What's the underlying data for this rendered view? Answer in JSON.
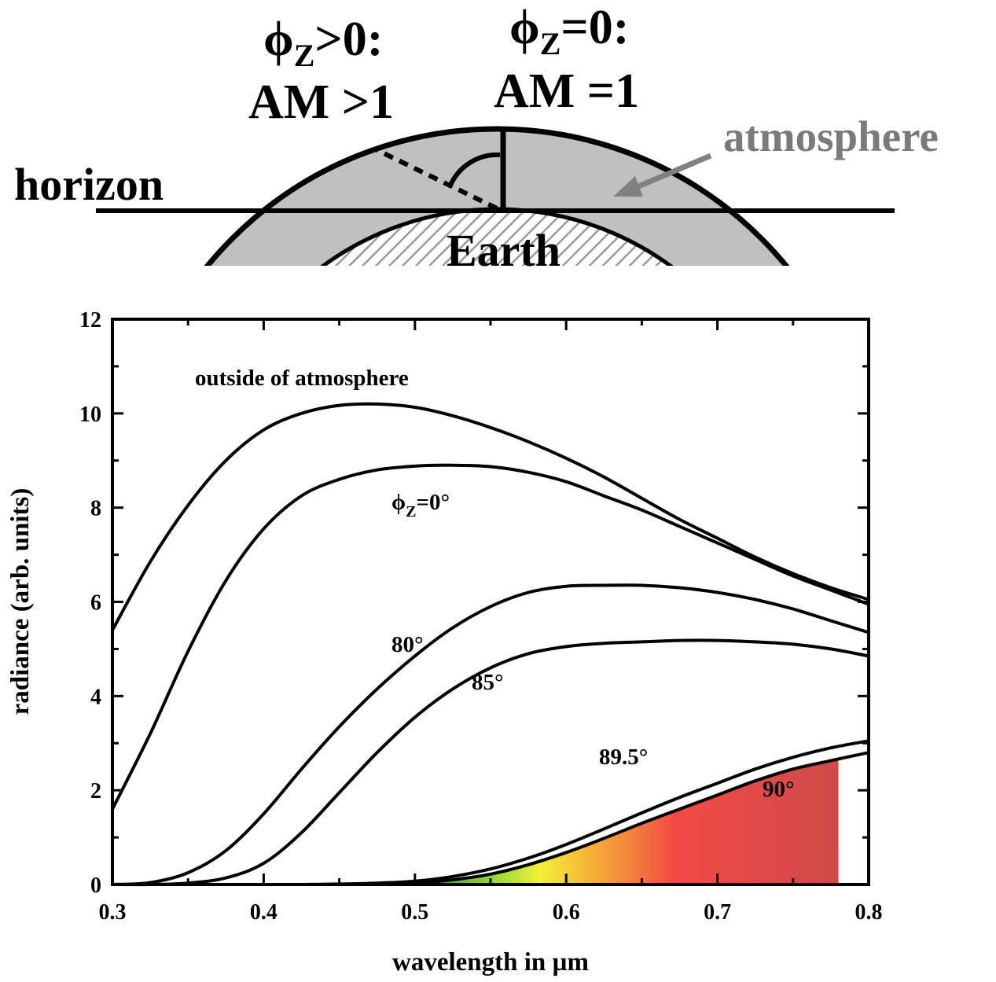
{
  "diagram": {
    "label_left_line1": "ϕ",
    "label_left_sub": "Z",
    "label_left_rest": ">0:",
    "label_left_line2": "AM >1",
    "label_right_line1": "ϕ",
    "label_right_sub": "Z",
    "label_right_rest": "=0:",
    "label_right_line2": "AM =1",
    "horizon": "horizon",
    "atmosphere": "atmosphere",
    "earth": "Earth"
  },
  "chart_data": {
    "type": "line",
    "xlabel": "wavelength in µm",
    "ylabel": "radiance (arb. units)",
    "xlim": [
      0.3,
      0.8
    ],
    "ylim": [
      0,
      12
    ],
    "xticks": [
      0.3,
      0.4,
      0.5,
      0.6,
      0.7,
      0.8
    ],
    "xtick_labels": [
      "0.3",
      "0.4",
      "0.5",
      "0.6",
      "0.7",
      "0.8"
    ],
    "yticks": [
      0,
      2,
      4,
      6,
      8,
      10,
      12
    ],
    "ytick_labels": [
      "0",
      "2",
      "4",
      "6",
      "8",
      "10",
      "12"
    ],
    "x": [
      0.3,
      0.325,
      0.35,
      0.375,
      0.4,
      0.425,
      0.45,
      0.475,
      0.5,
      0.525,
      0.55,
      0.575,
      0.6,
      0.625,
      0.65,
      0.675,
      0.7,
      0.725,
      0.75,
      0.775,
      0.8
    ],
    "series": [
      {
        "name": "outside of atmosphere",
        "label_text": "outside of atmosphere",
        "values": [
          5.4,
          6.85,
          8.05,
          9.0,
          9.65,
          10.0,
          10.17,
          10.2,
          10.13,
          9.95,
          9.7,
          9.4,
          9.05,
          8.65,
          8.2,
          7.75,
          7.35,
          6.95,
          6.6,
          6.3,
          6.05
        ]
      },
      {
        "name": "ϕZ=0°",
        "label_text": "=0°",
        "label_phi": "ϕ",
        "label_sub": "Z",
        "values": [
          1.6,
          3.2,
          4.95,
          6.45,
          7.55,
          8.25,
          8.6,
          8.8,
          8.88,
          8.9,
          8.87,
          8.75,
          8.55,
          8.25,
          7.95,
          7.6,
          7.25,
          6.9,
          6.55,
          6.25,
          5.95
        ]
      },
      {
        "name": "80°",
        "label_text": "80°",
        "values": [
          0.0,
          0.04,
          0.25,
          0.72,
          1.5,
          2.45,
          3.35,
          4.15,
          4.85,
          5.45,
          5.9,
          6.2,
          6.33,
          6.35,
          6.35,
          6.3,
          6.2,
          6.05,
          5.85,
          5.6,
          5.35
        ]
      },
      {
        "name": "85°",
        "label_text": "85°",
        "values": [
          0.0,
          0.0,
          0.03,
          0.14,
          0.45,
          1.1,
          1.95,
          2.8,
          3.55,
          4.15,
          4.6,
          4.9,
          5.05,
          5.12,
          5.15,
          5.18,
          5.18,
          5.15,
          5.1,
          5.0,
          4.85
        ]
      },
      {
        "name": "89.5°",
        "label_text": "89.5°",
        "values": [
          0.0,
          0.0,
          0.0,
          0.0,
          0.0,
          0.0,
          0.01,
          0.03,
          0.07,
          0.17,
          0.33,
          0.56,
          0.85,
          1.18,
          1.52,
          1.85,
          2.15,
          2.45,
          2.7,
          2.9,
          3.05
        ]
      },
      {
        "name": "90°",
        "label_text": "90°",
        "values": [
          0.0,
          0.0,
          0.0,
          0.0,
          0.0,
          0.0,
          0.0,
          0.01,
          0.03,
          0.1,
          0.22,
          0.42,
          0.68,
          0.98,
          1.3,
          1.6,
          1.9,
          2.2,
          2.45,
          2.63,
          2.8
        ]
      }
    ],
    "shaded_region": {
      "x_start": 0.51,
      "x_end": 0.78,
      "under_series": "90°"
    },
    "colors": {
      "line": "#000000",
      "atmosphere_fill": "#c0c0c0",
      "atmosphere_label": "#7a7a7a",
      "gradient": [
        "#3a9a3a",
        "#8ad23a",
        "#f4f03a",
        "#f59a3a",
        "#f24a45",
        "#cf4a4a"
      ]
    }
  }
}
